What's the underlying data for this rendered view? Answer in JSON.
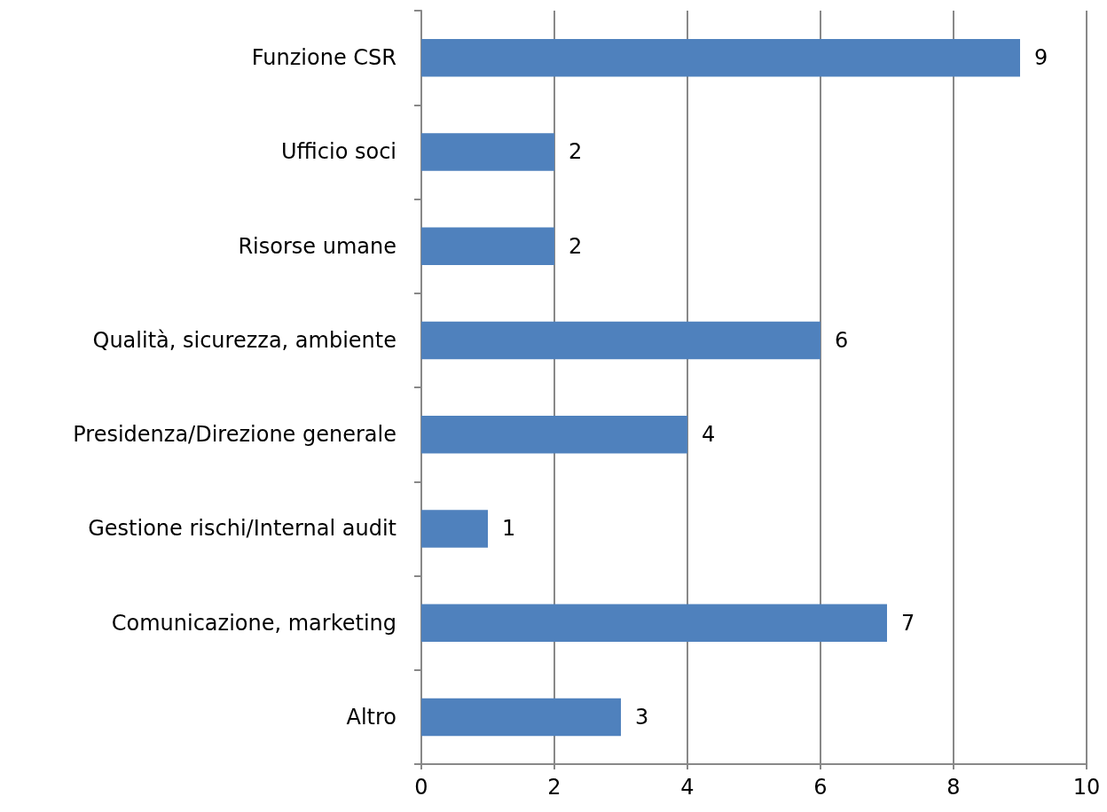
{
  "chart_data": {
    "type": "bar",
    "orientation": "horizontal",
    "categories": [
      "Funzione CSR",
      "Ufficio soci",
      "Risorse umane",
      "Qualità, sicurezza, ambiente",
      "Presidenza/Direzione generale",
      "Gestione rischi/Internal audit",
      "Comunicazione, marketing",
      "Altro"
    ],
    "values": [
      9,
      2,
      2,
      6,
      4,
      1,
      7,
      3
    ],
    "color": "#4f81bd",
    "xlim": [
      0,
      10
    ],
    "xticks": [
      0,
      2,
      4,
      6,
      8,
      10
    ],
    "grid": "x",
    "data_labels": true
  }
}
